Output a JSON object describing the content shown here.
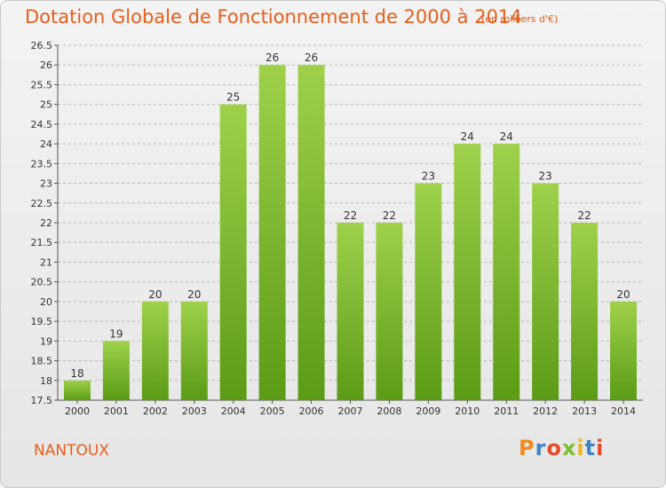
{
  "header": {
    "title": "Dotation Globale de Fonctionnement de 2000 à 2014",
    "unit": "(en milliers d'€)"
  },
  "footer": {
    "commune": "NANTOUX",
    "logo_text": "Proxiti"
  },
  "colors": {
    "title": "#e85e1a",
    "bar_top": "#9fd14b",
    "bar_bottom": "#5b9b16",
    "grid": "#b8b8b8",
    "logo": [
      "#f08a1c",
      "#3d86c6",
      "#e84a2a",
      "#7cbf2f",
      "#f0b41c",
      "#3d86c6",
      "#e84a2a"
    ]
  },
  "chart_data": {
    "type": "bar",
    "title": "Dotation Globale de Fonctionnement de 2000 à 2014",
    "subtitle": "(en milliers d'€)",
    "xlabel": "",
    "ylabel": "",
    "categories": [
      "2000",
      "2001",
      "2002",
      "2003",
      "2004",
      "2005",
      "2006",
      "2007",
      "2008",
      "2009",
      "2010",
      "2011",
      "2012",
      "2013",
      "2014"
    ],
    "values": [
      18,
      19,
      20,
      20,
      25,
      26,
      26,
      22,
      22,
      23,
      24,
      24,
      23,
      22,
      20
    ],
    "ylim": [
      17.5,
      26.5
    ],
    "yticks": [
      "17.5",
      "18",
      "18.5",
      "19",
      "19.5",
      "20",
      "20.5",
      "21",
      "21.5",
      "22",
      "22.5",
      "23",
      "23.5",
      "24",
      "24.5",
      "25",
      "25.5",
      "26",
      "26.5"
    ],
    "grid": "horizontal-dashed",
    "legend": "none"
  }
}
